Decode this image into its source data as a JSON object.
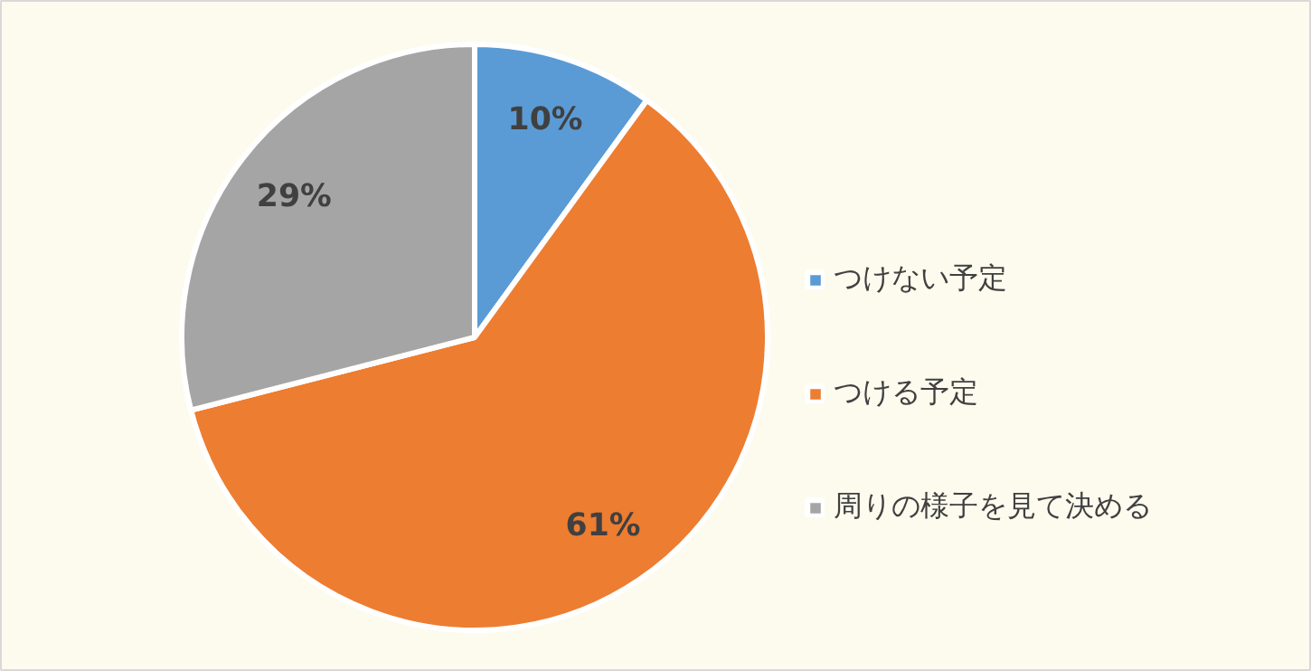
{
  "chart_data": {
    "type": "pie",
    "categories": [
      "つけない予定",
      "つける予定",
      "周りの様子を見て決める"
    ],
    "values": [
      10,
      61,
      29
    ],
    "value_labels": [
      "10%",
      "61%",
      "29%"
    ],
    "colors": [
      "#5b9bd5",
      "#ed7d31",
      "#a5a5a5"
    ],
    "legend": "right"
  }
}
